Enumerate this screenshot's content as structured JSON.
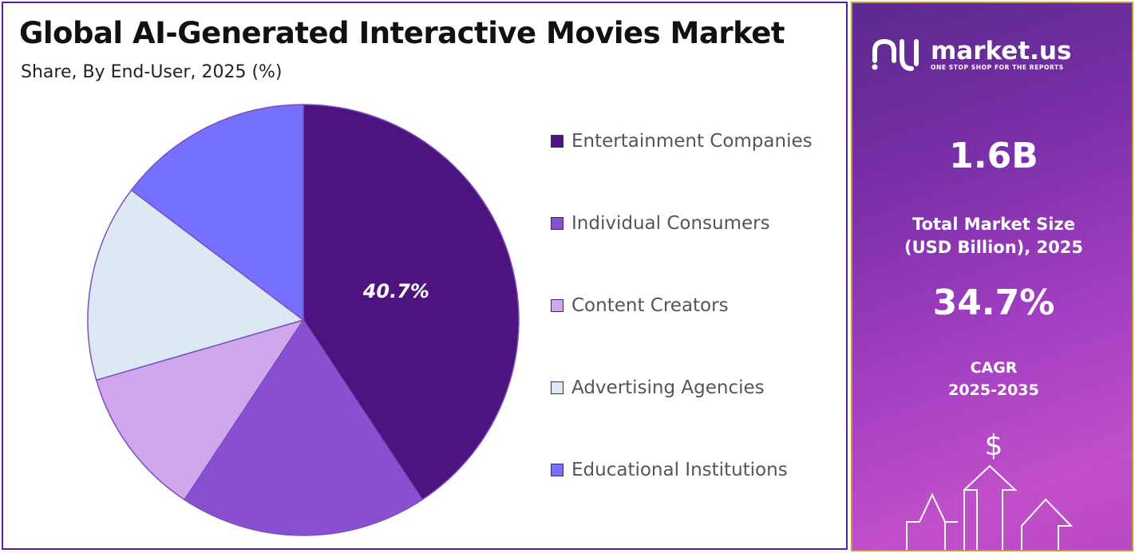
{
  "header": {
    "title": "Global AI-Generated Interactive Movies Market",
    "subtitle": "Share, By End-User, 2025 (%)"
  },
  "chart_data": {
    "type": "pie",
    "title": "Global AI-Generated Interactive Movies Market",
    "subtitle": "Share, By End-User, 2025 (%)",
    "slices": [
      {
        "label": "Entertainment Companies",
        "value": 40.7,
        "color": "#4d1480",
        "data_label": "40.7%"
      },
      {
        "label": "Individual Consumers",
        "value": 18.6,
        "color": "#8a4fd1"
      },
      {
        "label": "Content Creators",
        "value": 11.2,
        "color": "#d0a6ec"
      },
      {
        "label": "Advertising Agencies",
        "value": 14.8,
        "color": "#dde8f5"
      },
      {
        "label": "Educational Institutions",
        "value": 14.7,
        "color": "#7570ff"
      }
    ],
    "legend_position": "right"
  },
  "sidebar": {
    "brand_name": "market.us",
    "brand_tagline": "ONE STOP SHOP FOR THE REPORTS",
    "market_size_value": "1.6B",
    "market_size_label_line1": "Total Market Size",
    "market_size_label_line2": "(USD Billion), 2025",
    "cagr_value": "34.7%",
    "cagr_label_line1": "CAGR",
    "cagr_label_line2": "2025-2035",
    "dollar_symbol": "$",
    "colors": {
      "background_start": "#5a2a8c",
      "background_end": "#c14fc9",
      "border": "#c79a2e"
    }
  }
}
